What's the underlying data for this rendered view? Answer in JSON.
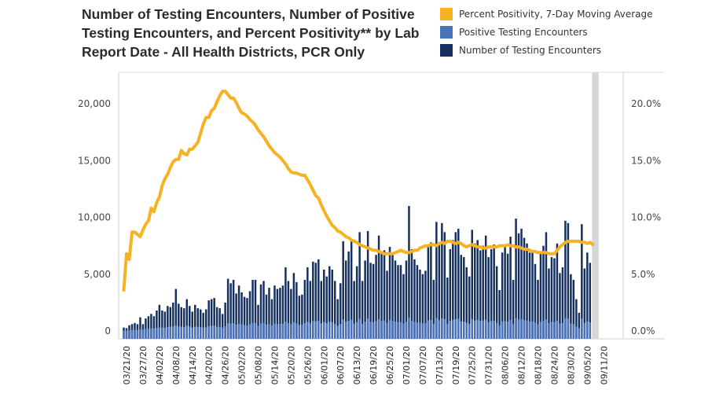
{
  "chart_data": {
    "type": "bar",
    "title": "Number of Testing Encounters, Number of Positive Testing Encounters, and Percent Positivity** by Lab Report Date - All Health Districts, PCR Only",
    "xlabel": "",
    "ylabel": "",
    "y2label": "",
    "ylim": [
      0,
      22000
    ],
    "y2lim": [
      0,
      0.22
    ],
    "y_ticks": [
      "0",
      "5,000",
      "10,000",
      "15,000",
      "20,000"
    ],
    "y_tick_values": [
      0,
      5000,
      10000,
      15000,
      20000
    ],
    "y2_ticks": [
      "0.0%",
      "5.0%",
      "10.0%",
      "15.0%",
      "20.0%"
    ],
    "y2_tick_values": [
      0,
      0.05,
      0.1,
      0.15,
      0.2
    ],
    "x_start_date": "03/20/20",
    "x_tick_labels": [
      "03/21/20",
      "03/27/20",
      "04/02/20",
      "04/08/20",
      "04/14/20",
      "04/20/20",
      "04/26/20",
      "05/02/20",
      "05/08/20",
      "05/14/20",
      "05/20/20",
      "05/26/20",
      "06/01/20",
      "06/07/20",
      "06/13/20",
      "06/19/20",
      "06/25/20",
      "07/01/20",
      "07/07/20",
      "07/13/20",
      "07/19/20",
      "07/25/20",
      "07/31/20",
      "08/06/20",
      "08/12/20",
      "08/18/20",
      "08/24/20",
      "08/30/20",
      "09/05/20",
      "09/11/20"
    ],
    "x_tick_day_offsets": [
      1,
      7,
      13,
      19,
      25,
      31,
      37,
      43,
      49,
      55,
      61,
      67,
      73,
      79,
      85,
      91,
      97,
      103,
      109,
      115,
      121,
      127,
      133,
      139,
      145,
      151,
      157,
      163,
      169,
      175
    ],
    "shaded_region_days": [
      171,
      174
    ],
    "legend": [
      {
        "label": "Percent Positivity, 7-Day Moving Average",
        "color": "#F5B324"
      },
      {
        "label": "Positive Testing Encounters",
        "color": "#4A72B8"
      },
      {
        "label": "Number of Testing Encounters",
        "color": "#15305E"
      }
    ],
    "legend_position": "top-right",
    "grid": false,
    "series": [
      {
        "name": "Number of Testing Encounters",
        "type": "bar",
        "axis": "left",
        "color": "#15305E",
        "values": [
          300,
          250,
          500,
          600,
          700,
          600,
          1200,
          600,
          1100,
          1300,
          1500,
          1300,
          1800,
          2300,
          1800,
          1700,
          2200,
          2100,
          2500,
          3700,
          2400,
          2100,
          2000,
          2800,
          2200,
          1700,
          2300,
          2000,
          1900,
          1600,
          1900,
          2700,
          2800,
          2900,
          2100,
          2000,
          1500,
          2500,
          4600,
          4200,
          4500,
          3300,
          4000,
          3400,
          3000,
          2900,
          3500,
          4500,
          4500,
          2300,
          4100,
          4400,
          3200,
          3800,
          2800,
          4000,
          3700,
          3800,
          4000,
          5600,
          4400,
          3700,
          5100,
          4300,
          3100,
          3200,
          4500,
          5600,
          4400,
          6100,
          6000,
          6300,
          4400,
          5400,
          4800,
          5700,
          5400,
          4400,
          2800,
          4200,
          7900,
          6200,
          7000,
          7900,
          4400,
          5700,
          8700,
          4400,
          6200,
          8800,
          6000,
          5900,
          6700,
          8400,
          7000,
          7100,
          5300,
          7400,
          6700,
          6200,
          5800,
          5800,
          5000,
          6200,
          11000,
          7200,
          6300,
          5800,
          5400,
          5000,
          5300,
          7500,
          7800,
          4500,
          9600,
          7800,
          9500,
          8700,
          4700,
          7200,
          8000,
          8700,
          9000,
          6700,
          6500,
          5600,
          4800,
          8900,
          7700,
          8000,
          7100,
          7500,
          8400,
          6500,
          7200,
          7600,
          5700,
          3600,
          6900,
          7400,
          6800,
          8300,
          4500,
          9900,
          8600,
          9000,
          8200,
          7700,
          6900,
          6900,
          5900,
          4500,
          6800,
          7500,
          8700,
          5500,
          6500,
          6400,
          7700,
          5100,
          5600,
          9700,
          9500,
          5000,
          4500,
          2800,
          1600,
          9400,
          5500,
          6900,
          6000
        ],
        "note": "approximate daily values read from bar heights"
      },
      {
        "name": "Positive Testing Encounters",
        "type": "bar",
        "axis": "left",
        "color": "#4A72B8",
        "values": [
          20,
          30,
          50,
          80,
          100,
          90,
          150,
          120,
          180,
          200,
          240,
          220,
          280,
          320,
          300,
          280,
          350,
          380,
          400,
          500,
          420,
          380,
          350,
          460,
          400,
          300,
          380,
          360,
          340,
          300,
          330,
          420,
          460,
          480,
          380,
          360,
          300,
          420,
          680,
          650,
          680,
          560,
          620,
          580,
          520,
          480,
          580,
          720,
          700,
          460,
          660,
          700,
          560,
          600,
          500,
          640,
          600,
          620,
          640,
          820,
          700,
          600,
          780,
          680,
          540,
          560,
          700,
          820,
          680,
          880,
          860,
          900,
          680,
          780,
          700,
          820,
          780,
          640,
          460,
          620,
          1000,
          820,
          900,
          1000,
          640,
          780,
          1080,
          640,
          820,
          1100,
          800,
          780,
          880,
          1040,
          900,
          920,
          720,
          960,
          880,
          820,
          780,
          780,
          680,
          820,
          1200,
          900,
          820,
          760,
          720,
          680,
          700,
          940,
          980,
          620,
          1140,
          960,
          1120,
          1040,
          640,
          900,
          980,
          1040,
          1060,
          840,
          820,
          720,
          640,
          1060,
          940,
          980,
          880,
          920,
          1000,
          800,
          880,
          920,
          720,
          500,
          840,
          880,
          820,
          980,
          600,
          1140,
          1020,
          1060,
          980,
          920,
          840,
          840,
          740,
          600,
          820,
          900,
          1020,
          700,
          800,
          780,
          920,
          660,
          700,
          1120,
          1100,
          660,
          600,
          400,
          240,
          1100,
          700,
          840,
          760
        ],
        "note": "approximate; shown as lighter base layer of each bar"
      },
      {
        "name": "Percent Positivity, 7-Day Moving Average",
        "type": "line",
        "axis": "right",
        "color": "#F5B324",
        "x_day_offsets": [
          0,
          1,
          2,
          3,
          4,
          5,
          6,
          7,
          8,
          9,
          10,
          11,
          12,
          13,
          14,
          15,
          16,
          17,
          18,
          19,
          20,
          21,
          22,
          23,
          24,
          25,
          26,
          27,
          28,
          29,
          30,
          31,
          32,
          33,
          34,
          35,
          36,
          37,
          38,
          39,
          40,
          41,
          42,
          43,
          44,
          45,
          46,
          47,
          48,
          49,
          50,
          51,
          52,
          53,
          54,
          55,
          56,
          57,
          58,
          59,
          60,
          61,
          62,
          63,
          64,
          65,
          66,
          67,
          68,
          69,
          70,
          71,
          72,
          73,
          74,
          75,
          76,
          77,
          78,
          79,
          80,
          81,
          82,
          83,
          84,
          85,
          86,
          87,
          88,
          89,
          90,
          91,
          92,
          93,
          94,
          95,
          96,
          97,
          98,
          99,
          100,
          101,
          102,
          103,
          104,
          105,
          106,
          107,
          108,
          109,
          110,
          111,
          112,
          113,
          114,
          115,
          116,
          117,
          118,
          119,
          120,
          121,
          122,
          123,
          124,
          125,
          126,
          127,
          128,
          129,
          130,
          131,
          132,
          133,
          134,
          135,
          136,
          137,
          138,
          139,
          140,
          141,
          142,
          143,
          144,
          145,
          146,
          147,
          148,
          149,
          150,
          151,
          152,
          153,
          154,
          155,
          156,
          157,
          158,
          159,
          160,
          161,
          162,
          163,
          164,
          165,
          166,
          167,
          168,
          169,
          170,
          171
        ],
        "values": [
          0.036,
          0.068,
          0.063,
          0.087,
          0.087,
          0.085,
          0.083,
          0.089,
          0.094,
          0.097,
          0.108,
          0.105,
          0.113,
          0.118,
          0.128,
          0.134,
          0.138,
          0.144,
          0.149,
          0.151,
          0.151,
          0.159,
          0.156,
          0.155,
          0.16,
          0.16,
          0.163,
          0.166,
          0.174,
          0.182,
          0.188,
          0.188,
          0.194,
          0.196,
          0.202,
          0.207,
          0.211,
          0.211,
          0.208,
          0.205,
          0.205,
          0.201,
          0.196,
          0.192,
          0.191,
          0.189,
          0.186,
          0.184,
          0.181,
          0.177,
          0.174,
          0.171,
          0.167,
          0.163,
          0.16,
          0.157,
          0.155,
          0.153,
          0.15,
          0.147,
          0.143,
          0.14,
          0.139,
          0.139,
          0.138,
          0.137,
          0.137,
          0.133,
          0.129,
          0.124,
          0.119,
          0.117,
          0.111,
          0.106,
          0.101,
          0.097,
          0.093,
          0.091,
          0.088,
          0.087,
          0.085,
          0.083,
          0.082,
          0.08,
          0.079,
          0.078,
          0.076,
          0.075,
          0.074,
          0.073,
          0.072,
          0.071,
          0.071,
          0.07,
          0.069,
          0.068,
          0.068,
          0.068,
          0.068,
          0.069,
          0.07,
          0.071,
          0.07,
          0.069,
          0.069,
          0.07,
          0.071,
          0.071,
          0.073,
          0.074,
          0.075,
          0.075,
          0.076,
          0.076,
          0.075,
          0.077,
          0.078,
          0.077,
          0.079,
          0.079,
          0.078,
          0.077,
          0.078,
          0.077,
          0.075,
          0.074,
          0.075,
          0.076,
          0.075,
          0.074,
          0.074,
          0.073,
          0.073,
          0.074,
          0.074,
          0.074,
          0.074,
          0.075,
          0.075,
          0.075,
          0.076,
          0.075,
          0.075,
          0.074,
          0.074,
          0.073,
          0.072,
          0.072,
          0.071,
          0.07,
          0.07,
          0.069,
          0.069,
          0.069,
          0.069,
          0.068,
          0.068,
          0.068,
          0.071,
          0.074,
          0.076,
          0.078,
          0.079,
          0.079,
          0.079,
          0.079,
          0.079,
          0.078,
          0.078,
          0.077,
          0.078,
          0.076
        ]
      }
    ]
  }
}
